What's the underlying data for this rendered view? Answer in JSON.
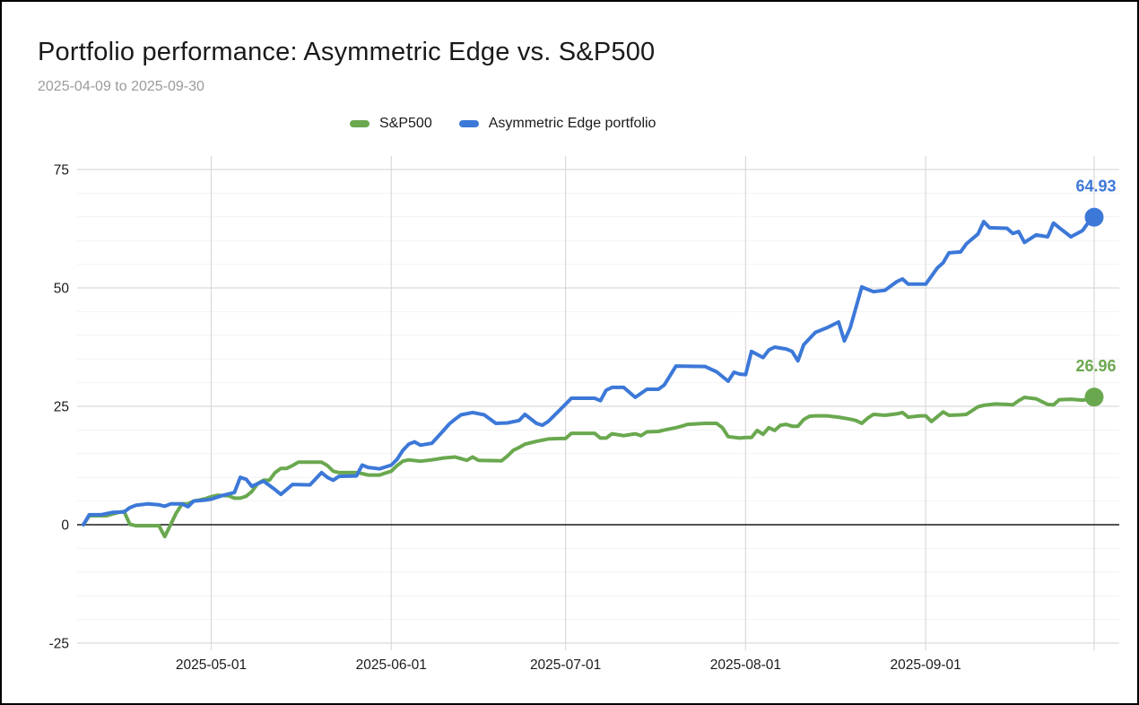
{
  "header": {
    "title": "Portfolio performance: Asymmetric Edge vs. S&P500",
    "subtitle": "2025-04-09 to 2025-09-30"
  },
  "chart_data": {
    "type": "line",
    "title": "Portfolio performance: Asymmetric Edge vs. S&P500",
    "subtitle": "2025-04-09 to 2025-09-30",
    "xlabel": "",
    "ylabel": "",
    "x_start_date": "2025-04-09",
    "x_end_date": "2025-09-30",
    "x_domain_days": [
      0,
      174
    ],
    "x_tick_labels": [
      "2025-05-01",
      "2025-06-01",
      "2025-07-01",
      "2025-08-01",
      "2025-09-01"
    ],
    "x_tick_day_offsets": [
      22,
      53,
      83,
      114,
      145
    ],
    "x_end_gridline_day_offset": 174,
    "y_axis": {
      "ticks": [
        75,
        50,
        25,
        0,
        -25
      ],
      "minor_step": 5,
      "range": [
        -25,
        75
      ],
      "zero_line_color": "#1a1a1a"
    },
    "grid": true,
    "legend_position": "top",
    "gridline_major_color": "#d9d9d9",
    "gridline_minor_color": "#f2f2f2",
    "axis_text_color": "#1a1a1a",
    "series": [
      {
        "name": "S&P500",
        "color": "#6aa84f",
        "end_value": 26.96,
        "end_label": "26.96",
        "points": [
          [
            0,
            0
          ],
          [
            1,
            1.9
          ],
          [
            4,
            1.9
          ],
          [
            6,
            2.6
          ],
          [
            7,
            2.8
          ],
          [
            8,
            0.1
          ],
          [
            9,
            -0.2
          ],
          [
            13,
            -0.2
          ],
          [
            14,
            -2.5
          ],
          [
            15,
            0.0
          ],
          [
            16,
            2.5
          ],
          [
            17,
            4.4
          ],
          [
            18,
            4.4
          ],
          [
            19,
            5.0
          ],
          [
            20,
            5.2
          ],
          [
            21,
            5.5
          ],
          [
            22,
            5.9
          ],
          [
            23,
            6.2
          ],
          [
            25,
            6.1
          ],
          [
            26,
            5.6
          ],
          [
            27,
            5.6
          ],
          [
            28,
            6.0
          ],
          [
            29,
            7.0
          ],
          [
            30,
            8.7
          ],
          [
            31,
            9.4
          ],
          [
            32,
            9.4
          ],
          [
            33,
            11.0
          ],
          [
            34,
            11.9
          ],
          [
            35,
            11.9
          ],
          [
            36,
            12.5
          ],
          [
            37,
            13.2
          ],
          [
            41,
            13.2
          ],
          [
            42,
            12.5
          ],
          [
            43,
            11.3
          ],
          [
            44,
            11.0
          ],
          [
            47,
            11.0
          ],
          [
            48,
            10.8
          ],
          [
            49,
            10.5
          ],
          [
            51,
            10.5
          ],
          [
            52,
            10.9
          ],
          [
            53,
            11.3
          ],
          [
            54,
            12.5
          ],
          [
            55,
            13.4
          ],
          [
            56,
            13.7
          ],
          [
            58,
            13.4
          ],
          [
            60,
            13.7
          ],
          [
            62,
            14.1
          ],
          [
            64,
            14.3
          ],
          [
            66,
            13.6
          ],
          [
            67,
            14.3
          ],
          [
            68,
            13.6
          ],
          [
            72,
            13.5
          ],
          [
            73,
            14.5
          ],
          [
            74,
            15.7
          ],
          [
            75,
            16.3
          ],
          [
            76,
            17.0
          ],
          [
            78,
            17.6
          ],
          [
            80,
            18.1
          ],
          [
            82,
            18.2
          ],
          [
            83,
            18.2
          ],
          [
            84,
            19.3
          ],
          [
            88,
            19.3
          ],
          [
            89,
            18.3
          ],
          [
            90,
            18.3
          ],
          [
            91,
            19.2
          ],
          [
            93,
            18.8
          ],
          [
            95,
            19.2
          ],
          [
            96,
            18.8
          ],
          [
            97,
            19.6
          ],
          [
            99,
            19.7
          ],
          [
            100,
            20.0
          ],
          [
            102,
            20.5
          ],
          [
            103,
            20.8
          ],
          [
            104,
            21.2
          ],
          [
            107,
            21.4
          ],
          [
            109,
            21.4
          ],
          [
            110,
            20.5
          ],
          [
            111,
            18.6
          ],
          [
            113,
            18.3
          ],
          [
            114,
            18.4
          ],
          [
            115,
            18.4
          ],
          [
            116,
            19.9
          ],
          [
            117,
            19.1
          ],
          [
            118,
            20.5
          ],
          [
            119,
            19.9
          ],
          [
            120,
            21.0
          ],
          [
            121,
            21.2
          ],
          [
            122,
            20.8
          ],
          [
            123,
            20.8
          ],
          [
            124,
            22.2
          ],
          [
            125,
            22.9
          ],
          [
            126,
            23.0
          ],
          [
            128,
            23.0
          ],
          [
            130,
            22.7
          ],
          [
            132,
            22.3
          ],
          [
            133,
            22.0
          ],
          [
            134,
            21.4
          ],
          [
            135,
            22.5
          ],
          [
            136,
            23.3
          ],
          [
            138,
            23.1
          ],
          [
            140,
            23.4
          ],
          [
            141,
            23.7
          ],
          [
            142,
            22.7
          ],
          [
            144,
            23.0
          ],
          [
            145,
            23.0
          ],
          [
            146,
            21.8
          ],
          [
            148,
            23.8
          ],
          [
            149,
            23.1
          ],
          [
            151,
            23.2
          ],
          [
            152,
            23.3
          ],
          [
            154,
            24.9
          ],
          [
            155,
            25.2
          ],
          [
            157,
            25.5
          ],
          [
            159,
            25.4
          ],
          [
            160,
            25.3
          ],
          [
            161,
            26.2
          ],
          [
            162,
            26.9
          ],
          [
            164,
            26.6
          ],
          [
            166,
            25.4
          ],
          [
            167,
            25.3
          ],
          [
            168,
            26.4
          ],
          [
            170,
            26.5
          ],
          [
            172,
            26.3
          ],
          [
            173,
            26.5
          ],
          [
            174,
            26.96
          ]
        ]
      },
      {
        "name": "Asymmetric Edge portfolio",
        "color": "#3c78d8",
        "end_value": 64.93,
        "end_label": "64.93",
        "points": [
          [
            0,
            0
          ],
          [
            1,
            2.1
          ],
          [
            3,
            2.1
          ],
          [
            5,
            2.6
          ],
          [
            7,
            2.7
          ],
          [
            8,
            3.6
          ],
          [
            9,
            4.1
          ],
          [
            11,
            4.4
          ],
          [
            13,
            4.2
          ],
          [
            14,
            3.9
          ],
          [
            15,
            4.4
          ],
          [
            17,
            4.4
          ],
          [
            18,
            3.8
          ],
          [
            19,
            5.0
          ],
          [
            21,
            5.2
          ],
          [
            22,
            5.4
          ],
          [
            24,
            6.2
          ],
          [
            26,
            6.8
          ],
          [
            27,
            10.0
          ],
          [
            28,
            9.6
          ],
          [
            29,
            8.1
          ],
          [
            31,
            9.2
          ],
          [
            33,
            7.4
          ],
          [
            34,
            6.4
          ],
          [
            36,
            8.5
          ],
          [
            39,
            8.4
          ],
          [
            41,
            11.0
          ],
          [
            42,
            10.0
          ],
          [
            43,
            9.4
          ],
          [
            44,
            10.2
          ],
          [
            47,
            10.3
          ],
          [
            48,
            12.6
          ],
          [
            49,
            12.1
          ],
          [
            51,
            11.8
          ],
          [
            52,
            12.2
          ],
          [
            53,
            12.6
          ],
          [
            54,
            13.8
          ],
          [
            55,
            15.7
          ],
          [
            56,
            17.0
          ],
          [
            57,
            17.5
          ],
          [
            58,
            16.8
          ],
          [
            60,
            17.2
          ],
          [
            62,
            19.9
          ],
          [
            63,
            21.3
          ],
          [
            64,
            22.3
          ],
          [
            65,
            23.2
          ],
          [
            67,
            23.7
          ],
          [
            69,
            23.2
          ],
          [
            71,
            21.4
          ],
          [
            73,
            21.5
          ],
          [
            75,
            22.0
          ],
          [
            76,
            23.3
          ],
          [
            78,
            21.4
          ],
          [
            79,
            21.0
          ],
          [
            80,
            21.8
          ],
          [
            82,
            24.2
          ],
          [
            84,
            26.7
          ],
          [
            88,
            26.7
          ],
          [
            89,
            26.2
          ],
          [
            90,
            28.4
          ],
          [
            91,
            29.0
          ],
          [
            93,
            29.0
          ],
          [
            95,
            26.9
          ],
          [
            97,
            28.6
          ],
          [
            99,
            28.6
          ],
          [
            100,
            29.5
          ],
          [
            101,
            31.5
          ],
          [
            102,
            33.5
          ],
          [
            107,
            33.4
          ],
          [
            109,
            32.3
          ],
          [
            111,
            30.3
          ],
          [
            112,
            32.2
          ],
          [
            113,
            31.8
          ],
          [
            114,
            31.7
          ],
          [
            115,
            36.6
          ],
          [
            117,
            35.3
          ],
          [
            118,
            36.9
          ],
          [
            119,
            37.5
          ],
          [
            121,
            37.1
          ],
          [
            122,
            36.6
          ],
          [
            123,
            34.6
          ],
          [
            124,
            38.0
          ],
          [
            126,
            40.6
          ],
          [
            128,
            41.6
          ],
          [
            130,
            42.8
          ],
          [
            131,
            38.8
          ],
          [
            132,
            41.6
          ],
          [
            134,
            50.2
          ],
          [
            135,
            49.7
          ],
          [
            136,
            49.2
          ],
          [
            138,
            49.5
          ],
          [
            140,
            51.3
          ],
          [
            141,
            51.9
          ],
          [
            142,
            50.8
          ],
          [
            145,
            50.8
          ],
          [
            147,
            54.2
          ],
          [
            148,
            55.3
          ],
          [
            149,
            57.4
          ],
          [
            151,
            57.6
          ],
          [
            152,
            59.3
          ],
          [
            154,
            61.4
          ],
          [
            155,
            64.0
          ],
          [
            156,
            62.7
          ],
          [
            159,
            62.6
          ],
          [
            160,
            61.5
          ],
          [
            161,
            61.9
          ],
          [
            162,
            59.6
          ],
          [
            164,
            61.2
          ],
          [
            166,
            60.8
          ],
          [
            167,
            63.7
          ],
          [
            168,
            62.7
          ],
          [
            170,
            60.8
          ],
          [
            172,
            62.1
          ],
          [
            173,
            63.8
          ],
          [
            174,
            64.93
          ]
        ]
      }
    ]
  }
}
